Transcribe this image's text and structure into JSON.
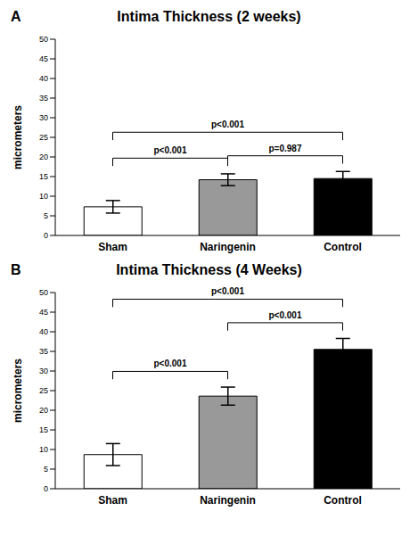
{
  "chart_data": [
    {
      "type": "bar",
      "panel": "A",
      "title": "Intima Thickness (2 weeks)",
      "y_label": "micrometers",
      "categories": [
        "Sham",
        "Naringenin",
        "Control"
      ],
      "values": [
        7.3,
        14.2,
        14.5
      ],
      "errors": [
        1.6,
        1.5,
        1.8
      ],
      "colors": [
        "#ffffff",
        "#999999",
        "#000000"
      ],
      "ylim": [
        0,
        50
      ],
      "yticks": [
        0,
        5,
        10,
        15,
        20,
        25,
        30,
        35,
        40,
        45,
        50
      ],
      "grid": false,
      "annotations": [
        {
          "text": "p<0.001",
          "from": "Sham",
          "to": "Control"
        },
        {
          "text": "p<0.001",
          "from": "Sham",
          "to": "Naringenin"
        },
        {
          "text": "p=0.987",
          "from": "Naringenin",
          "to": "Control"
        }
      ]
    },
    {
      "type": "bar",
      "panel": "B",
      "title": "Intima Thickness (4 Weeks)",
      "y_label": "micrometers",
      "categories": [
        "Sham",
        "Naringenin",
        "Control"
      ],
      "values": [
        8.7,
        23.6,
        35.5
      ],
      "errors": [
        2.8,
        2.3,
        2.8
      ],
      "colors": [
        "#ffffff",
        "#999999",
        "#000000"
      ],
      "ylim": [
        0,
        50
      ],
      "yticks": [
        0,
        5,
        10,
        15,
        20,
        25,
        30,
        35,
        40,
        45,
        50
      ],
      "grid": false,
      "annotations": [
        {
          "text": "p<0.001",
          "from": "Sham",
          "to": "Control"
        },
        {
          "text": "p<0.001",
          "from": "Sham",
          "to": "Naringenin"
        },
        {
          "text": "p<0.001",
          "from": "Naringenin",
          "to": "Control"
        }
      ]
    }
  ]
}
